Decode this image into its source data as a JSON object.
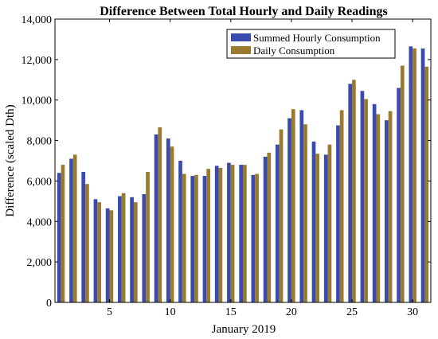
{
  "chart_data": {
    "type": "bar",
    "title": "Difference Between Total Hourly and Daily Readings",
    "xlabel": "January 2019",
    "ylabel": "Difference (scaled Dth)",
    "ylim": [
      0,
      14000
    ],
    "xlim": [
      0.5,
      31.5
    ],
    "x_ticks": [
      5,
      10,
      15,
      20,
      25,
      30
    ],
    "y_ticks": [
      0,
      2000,
      4000,
      6000,
      8000,
      10000,
      12000,
      14000
    ],
    "y_tick_labels": [
      "0",
      "2,000",
      "4,000",
      "6,000",
      "8,000",
      "10,000",
      "12,000",
      "14,000"
    ],
    "grid": false,
    "legend_position": "top-right",
    "categories": [
      1,
      2,
      3,
      4,
      5,
      6,
      7,
      8,
      9,
      10,
      11,
      12,
      13,
      14,
      15,
      16,
      17,
      18,
      19,
      20,
      21,
      22,
      23,
      24,
      25,
      26,
      27,
      28,
      29,
      30,
      31
    ],
    "series": [
      {
        "name": "Summed Hourly Consumption",
        "color": "#3a4bb0",
        "values": [
          6400,
          7100,
          6450,
          5100,
          4650,
          5250,
          5200,
          5350,
          8300,
          8100,
          7000,
          6250,
          6250,
          6750,
          6900,
          6800,
          6300,
          7200,
          7800,
          9100,
          9500,
          7950,
          7300,
          8750,
          10800,
          10450,
          9800,
          9000,
          10600,
          12650,
          12550
        ]
      },
      {
        "name": "Daily Consumption",
        "color": "#9a7b2e",
        "values": [
          6800,
          7300,
          5850,
          4950,
          4550,
          5400,
          4950,
          6450,
          8650,
          7700,
          6350,
          6300,
          6600,
          6650,
          6800,
          6800,
          6350,
          7400,
          8550,
          9550,
          8800,
          7350,
          7800,
          9500,
          11000,
          10050,
          9300,
          9450,
          11700,
          12550,
          11650
        ]
      }
    ]
  }
}
